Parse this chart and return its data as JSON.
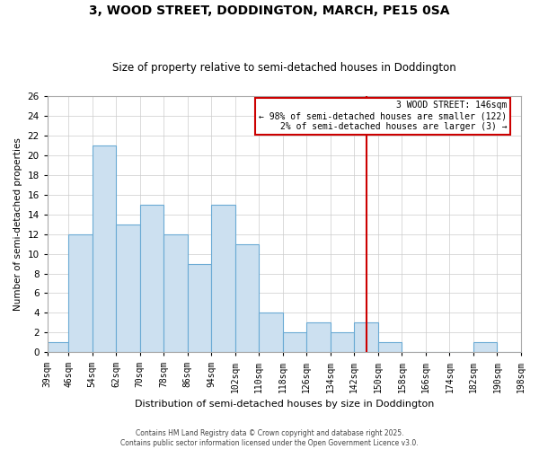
{
  "title": "3, WOOD STREET, DODDINGTON, MARCH, PE15 0SA",
  "subtitle": "Size of property relative to semi-detached houses in Doddington",
  "xlabel": "Distribution of semi-detached houses by size in Doddington",
  "ylabel": "Number of semi-detached properties",
  "bin_edges": [
    39,
    46,
    54,
    62,
    70,
    78,
    86,
    94,
    102,
    110,
    118,
    126,
    134,
    142,
    150,
    158,
    166,
    174,
    182,
    190,
    198
  ],
  "bin_heights": [
    1,
    12,
    21,
    13,
    15,
    12,
    9,
    15,
    11,
    4,
    2,
    3,
    2,
    3,
    1,
    0,
    0,
    0,
    1,
    0
  ],
  "bar_facecolor": "#cce0f0",
  "bar_edgecolor": "#6aaad4",
  "grid_color": "#cccccc",
  "grid_linewidth": 0.5,
  "vline_x": 146,
  "vline_color": "#cc0000",
  "vline_linewidth": 1.5,
  "annotation_title": "3 WOOD STREET: 146sqm",
  "annotation_line1": "← 98% of semi-detached houses are smaller (122)",
  "annotation_line2": "2% of semi-detached houses are larger (3) →",
  "annotation_box_edgecolor": "#cc0000",
  "annotation_box_facecolor": "#ffffff",
  "ylim": [
    0,
    26
  ],
  "yticks": [
    0,
    2,
    4,
    6,
    8,
    10,
    12,
    14,
    16,
    18,
    20,
    22,
    24,
    26
  ],
  "tick_labels": [
    "39sqm",
    "46sqm",
    "54sqm",
    "62sqm",
    "70sqm",
    "78sqm",
    "86sqm",
    "94sqm",
    "102sqm",
    "110sqm",
    "118sqm",
    "126sqm",
    "134sqm",
    "142sqm",
    "150sqm",
    "158sqm",
    "166sqm",
    "174sqm",
    "182sqm",
    "190sqm",
    "198sqm"
  ],
  "footnote1": "Contains HM Land Registry data © Crown copyright and database right 2025.",
  "footnote2": "Contains public sector information licensed under the Open Government Licence v3.0.",
  "background_color": "#ffffff",
  "spine_color": "#aaaaaa",
  "title_fontsize": 10,
  "subtitle_fontsize": 8.5,
  "xlabel_fontsize": 8,
  "ylabel_fontsize": 7.5,
  "tick_fontsize": 7,
  "ytick_fontsize": 7.5,
  "footnote_fontsize": 5.5,
  "annotation_fontsize": 7
}
